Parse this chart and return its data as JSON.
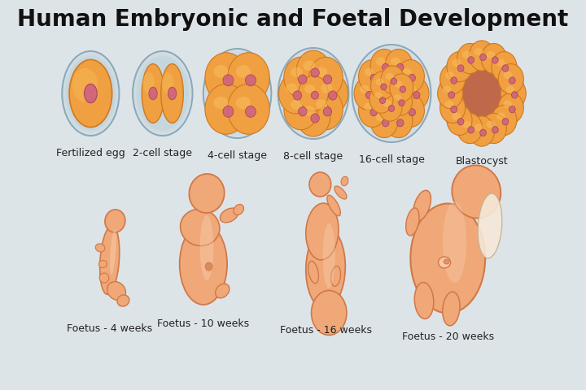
{
  "title": "Human Embryonic and Foetal Development",
  "background_color": "#dde4e8",
  "title_fontsize": 20,
  "title_fontweight": "bold",
  "top_labels": [
    "Fertilized egg",
    "2-cell stage",
    "4-cell stage",
    "8-cell stage",
    "16-cell stage",
    "Blastocyst"
  ],
  "bottom_labels": [
    "Foetus - 4 weeks",
    "Foetus - 10 weeks",
    "Foetus - 16 weeks",
    "Foetus - 20 weeks"
  ],
  "label_fontsize": 9,
  "shell_color": "#b8cfd8",
  "shell_edge": "#8aaabb",
  "shell_alpha": 0.75,
  "cell_fill": "#f0a040",
  "cell_edge": "#d07820",
  "cell_highlight": "#f8c060",
  "nucleus_color": "#d06080",
  "nucleus_edge": "#a04060",
  "blastocyst_cavity": "#c05530",
  "foetus_main": "#f0a878",
  "foetus_mid": "#e89060",
  "foetus_dark": "#d07848",
  "foetus_light": "#f8c8a8",
  "foetus_pale": "#fde0c8"
}
